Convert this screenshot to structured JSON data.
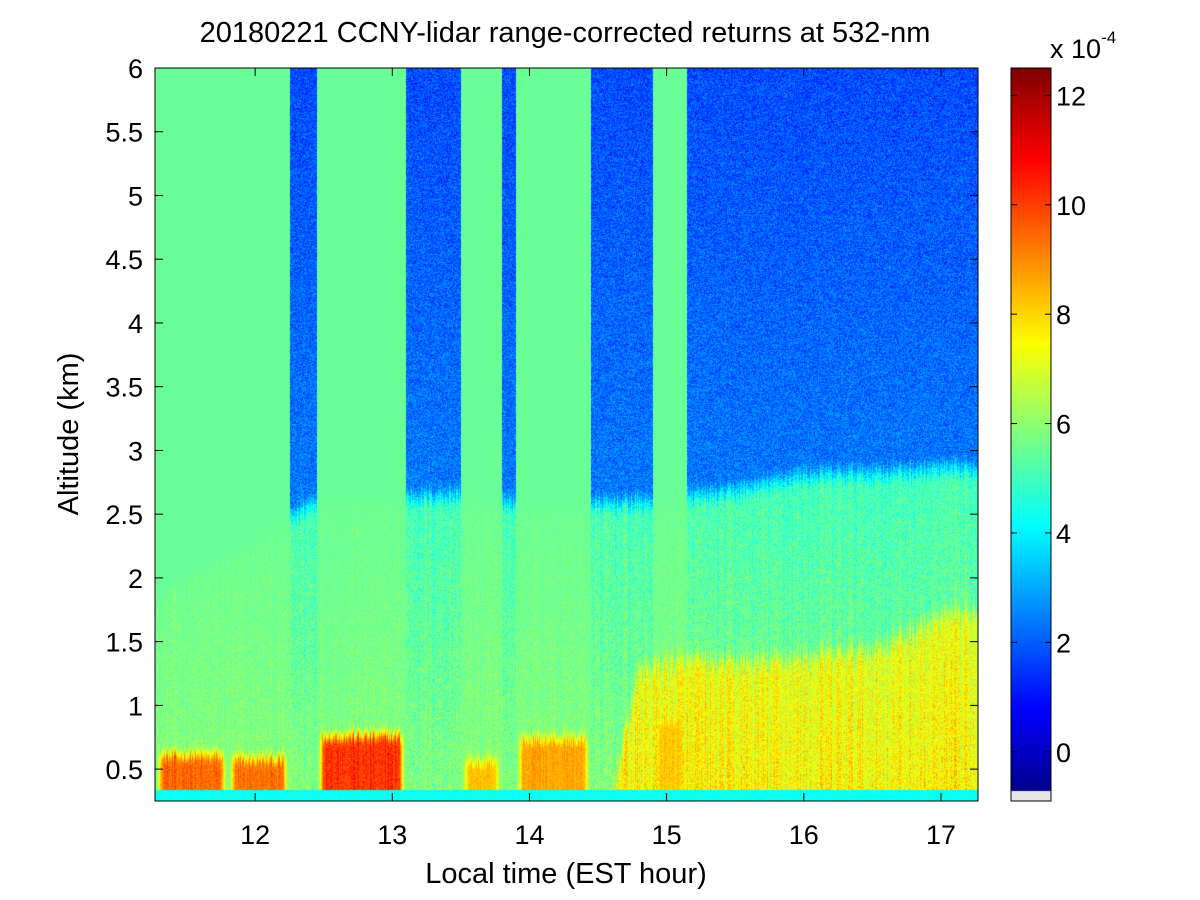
{
  "chart_data": {
    "type": "heatmap",
    "title": "20180221 CCNY-lidar range-corrected returns at 532-nm",
    "xlabel": "Local time (EST hour)",
    "ylabel": "Altitude (km)",
    "xlim": [
      11.27,
      17.27
    ],
    "ylim": [
      0.25,
      6.0
    ],
    "x_ticks": [
      12,
      13,
      14,
      15,
      16,
      17
    ],
    "y_ticks": [
      0.5,
      1,
      1.5,
      2,
      2.5,
      3,
      3.5,
      4,
      4.5,
      5,
      5.5,
      6
    ],
    "colorbar": {
      "multiplier_label": "x 10",
      "multiplier_exponent": "-4",
      "clim": [
        -0.9,
        12.5
      ],
      "ticks": [
        0,
        2,
        4,
        6,
        8,
        10,
        12
      ],
      "colormap": "jet"
    },
    "features": {
      "free_troposphere_value": 2.3,
      "residual_layer_value": 5.0,
      "boundary_layer_top_km": {
        "x": [
          11.3,
          12.3,
          12.5,
          13.0,
          13.5,
          14.0,
          14.5,
          15.0,
          15.5,
          16.0,
          16.5,
          17.0,
          17.27
        ],
        "y": [
          1.9,
          2.5,
          2.65,
          2.62,
          2.65,
          2.57,
          2.57,
          2.6,
          2.68,
          2.8,
          2.82,
          2.85,
          2.85
        ]
      },
      "mixed_layer_top_km": {
        "x": [
          11.3,
          14.6,
          14.8,
          15.0,
          15.5,
          16.0,
          16.5,
          17.0,
          17.2
        ],
        "y": [
          0.3,
          0.3,
          1.3,
          1.38,
          1.35,
          1.4,
          1.45,
          1.7,
          1.75
        ]
      },
      "surface_aerosol_patches": [
        {
          "t0": 11.27,
          "t1": 11.8,
          "top_km": 0.65,
          "peak": 10.2
        },
        {
          "t0": 11.8,
          "t1": 12.25,
          "top_km": 0.62,
          "peak": 10.0
        },
        {
          "t0": 12.45,
          "t1": 13.1,
          "top_km": 0.8,
          "peak": 11.0
        },
        {
          "t0": 13.5,
          "t1": 13.8,
          "top_km": 0.6,
          "peak": 8.8
        },
        {
          "t0": 13.9,
          "t1": 14.45,
          "top_km": 0.78,
          "peak": 9.2
        },
        {
          "t0": 14.9,
          "t1": 15.15,
          "top_km": 0.95,
          "peak": 8.6
        }
      ]
    }
  }
}
